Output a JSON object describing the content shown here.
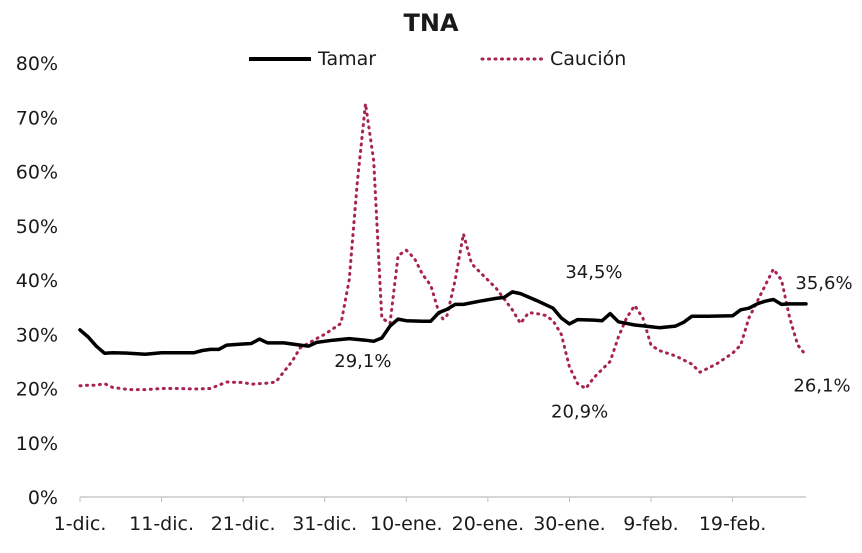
{
  "chart_data": {
    "type": "line",
    "title": "TNA",
    "xlabel": "",
    "ylabel": "",
    "ylim": [
      0,
      80
    ],
    "y_ticks": [
      "0%",
      "10%",
      "20%",
      "30%",
      "40%",
      "50%",
      "60%",
      "70%",
      "80%"
    ],
    "x_ticks": [
      "1-dic.",
      "11-dic.",
      "21-dic.",
      "31-dic.",
      "10-ene.",
      "20-ene.",
      "30-ene.",
      "9-feb.",
      "19-feb."
    ],
    "legend_position": "top",
    "grid": false,
    "series": [
      {
        "name": "Tamar",
        "color": "#000000",
        "style": "solid",
        "points": [
          [
            0,
            30.8
          ],
          [
            1,
            29.5
          ],
          [
            2,
            27.8
          ],
          [
            3,
            26.5
          ],
          [
            4,
            26.6
          ],
          [
            6,
            26.5
          ],
          [
            8,
            26.3
          ],
          [
            10,
            26.6
          ],
          [
            12,
            26.6
          ],
          [
            14,
            26.6
          ],
          [
            15,
            27.0
          ],
          [
            16,
            27.2
          ],
          [
            17,
            27.2
          ],
          [
            18,
            28.0
          ],
          [
            20,
            28.2
          ],
          [
            21,
            28.3
          ],
          [
            22,
            29.1
          ],
          [
            23,
            28.4
          ],
          [
            25,
            28.4
          ],
          [
            27,
            28.0
          ],
          [
            28,
            27.8
          ],
          [
            29,
            28.5
          ],
          [
            31,
            28.9
          ],
          [
            33,
            29.2
          ],
          [
            35,
            28.9
          ],
          [
            36,
            28.7
          ],
          [
            37,
            29.3
          ],
          [
            38,
            31.5
          ],
          [
            39,
            32.8
          ],
          [
            40,
            32.5
          ],
          [
            42,
            32.4
          ],
          [
            43,
            32.4
          ],
          [
            44,
            34.0
          ],
          [
            45,
            34.6
          ],
          [
            46,
            35.5
          ],
          [
            47,
            35.5
          ],
          [
            49,
            36.1
          ],
          [
            51,
            36.6
          ],
          [
            52,
            36.8
          ],
          [
            53,
            37.8
          ],
          [
            54,
            37.5
          ],
          [
            56,
            36.2
          ],
          [
            58,
            34.8
          ],
          [
            59,
            33.0
          ],
          [
            60,
            31.9
          ],
          [
            61,
            32.7
          ],
          [
            63,
            32.6
          ],
          [
            64,
            32.5
          ],
          [
            65,
            33.8
          ],
          [
            66,
            32.3
          ],
          [
            68,
            31.7
          ],
          [
            70,
            31.4
          ],
          [
            71,
            31.2
          ],
          [
            73,
            31.5
          ],
          [
            74,
            32.2
          ],
          [
            75,
            33.3
          ],
          [
            77,
            33.3
          ],
          [
            80,
            33.4
          ],
          [
            81,
            34.5
          ],
          [
            82,
            34.8
          ],
          [
            83,
            35.6
          ],
          [
            84,
            36.1
          ],
          [
            85,
            36.4
          ],
          [
            86,
            35.5
          ],
          [
            87,
            35.6
          ],
          [
            89,
            35.6
          ]
        ]
      },
      {
        "name": "Caución",
        "color": "#a82256",
        "style": "dotted",
        "points": [
          [
            0,
            20.5
          ],
          [
            1,
            20.6
          ],
          [
            2,
            20.6
          ],
          [
            3,
            20.9
          ],
          [
            4,
            20.2
          ],
          [
            6,
            19.8
          ],
          [
            8,
            19.8
          ],
          [
            10,
            20.0
          ],
          [
            12,
            20.0
          ],
          [
            14,
            19.9
          ],
          [
            16,
            20.0
          ],
          [
            18,
            21.2
          ],
          [
            20,
            21.1
          ],
          [
            21,
            20.8
          ],
          [
            23,
            21.0
          ],
          [
            24,
            21.2
          ],
          [
            26,
            25.0
          ],
          [
            27,
            27.5
          ],
          [
            29,
            29.2
          ],
          [
            30,
            30.0
          ],
          [
            32,
            32.0
          ],
          [
            33,
            40.0
          ],
          [
            34,
            58.0
          ],
          [
            35,
            72.5
          ],
          [
            36,
            62.0
          ],
          [
            37,
            33.0
          ],
          [
            38,
            32.0
          ],
          [
            39,
            44.5
          ],
          [
            40,
            45.5
          ],
          [
            41,
            44.0
          ],
          [
            42,
            41.0
          ],
          [
            43,
            39.0
          ],
          [
            44,
            34.0
          ],
          [
            44.5,
            32.8
          ],
          [
            45,
            33.5
          ],
          [
            46,
            40.0
          ],
          [
            47,
            48.5
          ],
          [
            48,
            43.0
          ],
          [
            49,
            41.5
          ],
          [
            51,
            38.5
          ],
          [
            52,
            36.5
          ],
          [
            53,
            34.5
          ],
          [
            54,
            32.0
          ],
          [
            55,
            34.0
          ],
          [
            56,
            33.8
          ],
          [
            57,
            33.5
          ],
          [
            58,
            32.5
          ],
          [
            59,
            30.0
          ],
          [
            60,
            24.0
          ],
          [
            61,
            20.9
          ],
          [
            62,
            20.0
          ],
          [
            63,
            22.0
          ],
          [
            65,
            25.0
          ],
          [
            66,
            29.5
          ],
          [
            67,
            33.0
          ],
          [
            68,
            35.3
          ],
          [
            69,
            33.0
          ],
          [
            70,
            28.0
          ],
          [
            71,
            27.0
          ],
          [
            73,
            26.0
          ],
          [
            75,
            24.5
          ],
          [
            76,
            23.0
          ],
          [
            78,
            24.5
          ],
          [
            80,
            26.5
          ],
          [
            81,
            28.0
          ],
          [
            82,
            33.0
          ],
          [
            83,
            36.0
          ],
          [
            84,
            39.0
          ],
          [
            85,
            42.0
          ],
          [
            86,
            40.0
          ],
          [
            87,
            33.0
          ],
          [
            88,
            28.0
          ],
          [
            89,
            26.1
          ]
        ]
      }
    ],
    "annotations": [
      {
        "text": "29,1%",
        "x": 31,
        "y": 29.1
      },
      {
        "text": "34,5%",
        "x": 63,
        "y": 34.5
      },
      {
        "text": "20,9%",
        "x": 61,
        "y": 20.9
      },
      {
        "text": "35,6%",
        "x": 89,
        "y": 35.6
      },
      {
        "text": "26,1%",
        "x": 89,
        "y": 26.1
      }
    ]
  }
}
